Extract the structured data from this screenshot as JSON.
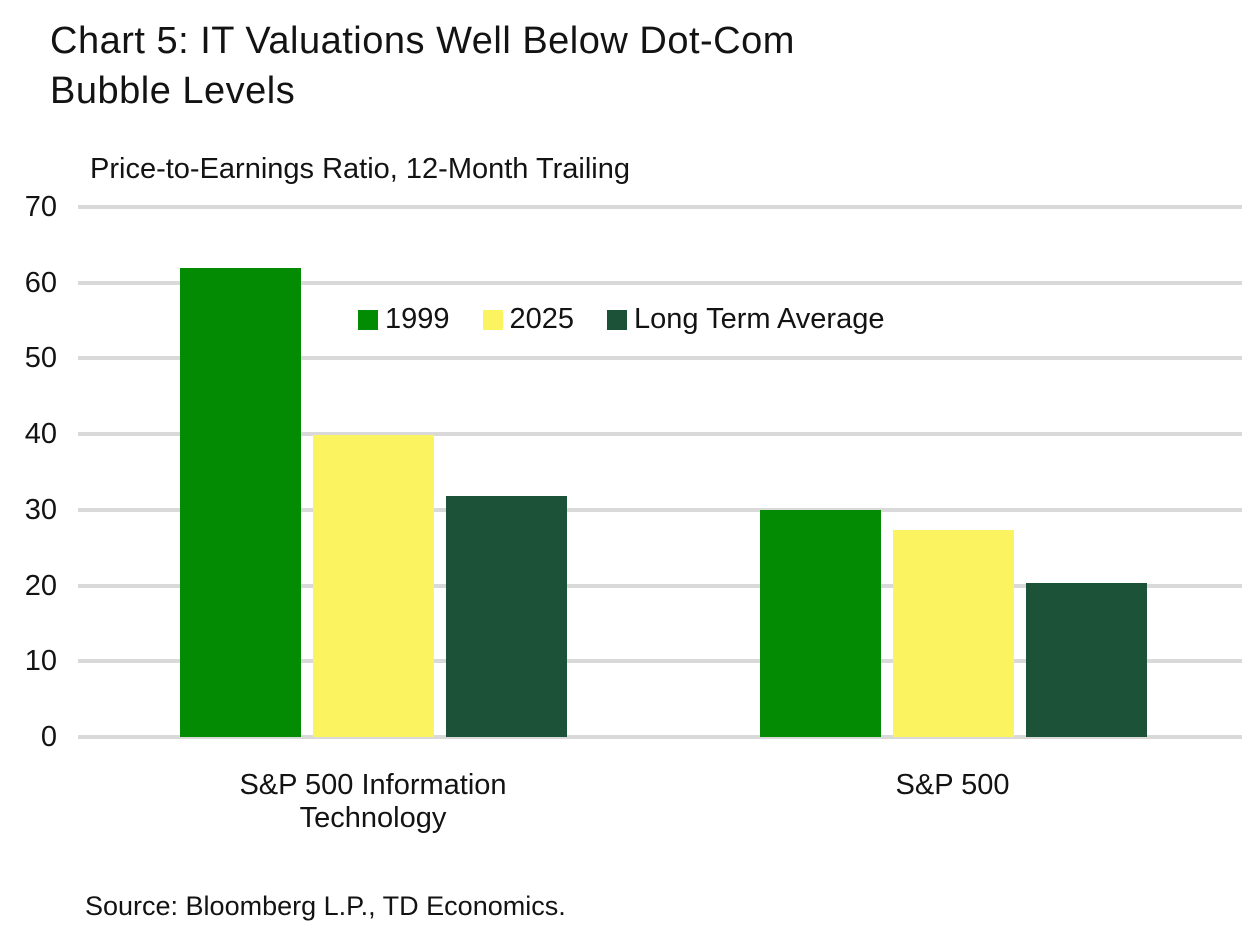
{
  "title": {
    "line1": "Chart 5: IT Valuations Well Below Dot-Com",
    "line2": "Bubble Levels"
  },
  "subtitle": "Price-to-Earnings Ratio, 12-Month Trailing",
  "source": "Source: Bloomberg L.P., TD Economics.",
  "colors": {
    "series_1999": "#038B03",
    "series_2025": "#FBF35F",
    "series_long_term_average": "#1C5238",
    "gridline": "#D9D9D9",
    "text": "#131313",
    "background": "#FFFFFF"
  },
  "chart_data": {
    "type": "bar",
    "title": "Chart 5: IT Valuations Well Below Dot-Com Bubble Levels",
    "subtitle": "Price-to-Earnings Ratio, 12-Month Trailing",
    "categories": [
      "S&P 500 Information Technology",
      "S&P 500"
    ],
    "series": [
      {
        "name": "1999",
        "color": "#038B03",
        "values": [
          62.0,
          30.0
        ]
      },
      {
        "name": "2025",
        "color": "#FBF35F",
        "values": [
          39.9,
          27.3
        ]
      },
      {
        "name": "Long Term Average",
        "color": "#1C5238",
        "values": [
          31.8,
          20.4
        ]
      }
    ],
    "ylabel": "",
    "xlabel": "",
    "ylim": [
      0,
      70
    ],
    "yticks": [
      0,
      10,
      20,
      30,
      40,
      50,
      60,
      70
    ],
    "grid": true,
    "legend_position": "upper-center-inside",
    "source": "Source: Bloomberg L.P., TD Economics."
  }
}
